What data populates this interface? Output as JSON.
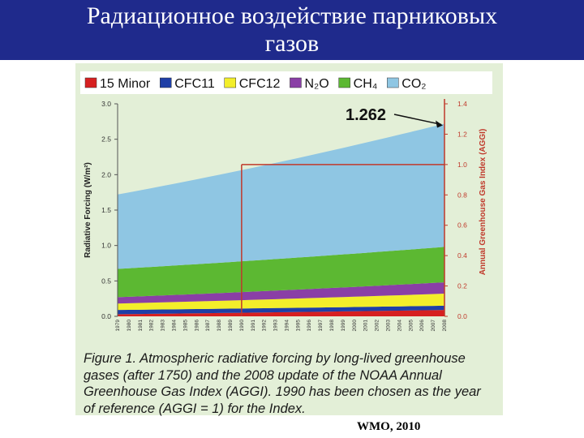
{
  "slide": {
    "title_line1": "Радиационное воздействие парниковых",
    "title_line2": "газов",
    "credit": "WMO, 2010"
  },
  "colors": {
    "title_bg": "#1f2a8c",
    "figure_bg": "#e3efd7",
    "accent_red": "#c0392b"
  },
  "chart_data": {
    "type": "area",
    "stacked": true,
    "x": [
      1979,
      1980,
      1981,
      1982,
      1983,
      1984,
      1985,
      1986,
      1987,
      1988,
      1989,
      1990,
      1991,
      1992,
      1993,
      1994,
      1995,
      1996,
      1997,
      1998,
      1999,
      2000,
      2001,
      2002,
      2003,
      2004,
      2005,
      2006,
      2007,
      2008
    ],
    "ylabel": "Radiative Forcing (W/m²)",
    "ylim": [
      0,
      3.0
    ],
    "yticks": [
      "0.0",
      "0.5",
      "1.0",
      "1.5",
      "2.0",
      "2.5",
      "3.0"
    ],
    "y2label": "Annual Greenhouse Gas Index (AGGI)",
    "y2lim": [
      0,
      1.4
    ],
    "y2ticks": [
      "0.0",
      "0.2",
      "0.4",
      "0.6",
      "0.8",
      "1.0",
      "1.2",
      "1.4"
    ],
    "reference_year": 1990,
    "reference_index": 1.0,
    "annotation": {
      "text": "1.262",
      "x": 2008
    },
    "series": [
      {
        "name": "15 Minor",
        "color": "#d62020",
        "start": 0.03,
        "end": 0.09
      },
      {
        "name": "CFC11",
        "color": "#1f3fa6",
        "start": 0.06,
        "end": 0.06
      },
      {
        "name": "CFC12",
        "color": "#f3ee2a",
        "start": 0.09,
        "end": 0.17
      },
      {
        "name": "N₂O",
        "color": "#8a3fa6",
        "start": 0.09,
        "end": 0.16
      },
      {
        "name": "CH₄",
        "color": "#5cb832",
        "start": 0.4,
        "end": 0.5
      },
      {
        "name": "CO₂",
        "color": "#8fc6e3",
        "start": 1.05,
        "end": 1.74
      }
    ]
  },
  "figure": {
    "caption": "Figure 1. Atmospheric radiative forcing by long-lived greenhouse gases (after 1750) and the 2008 update of the NOAA Annual Greenhouse Gas Index (AGGI). 1990 has been chosen as the year of reference (AGGI = 1) for the Index."
  }
}
